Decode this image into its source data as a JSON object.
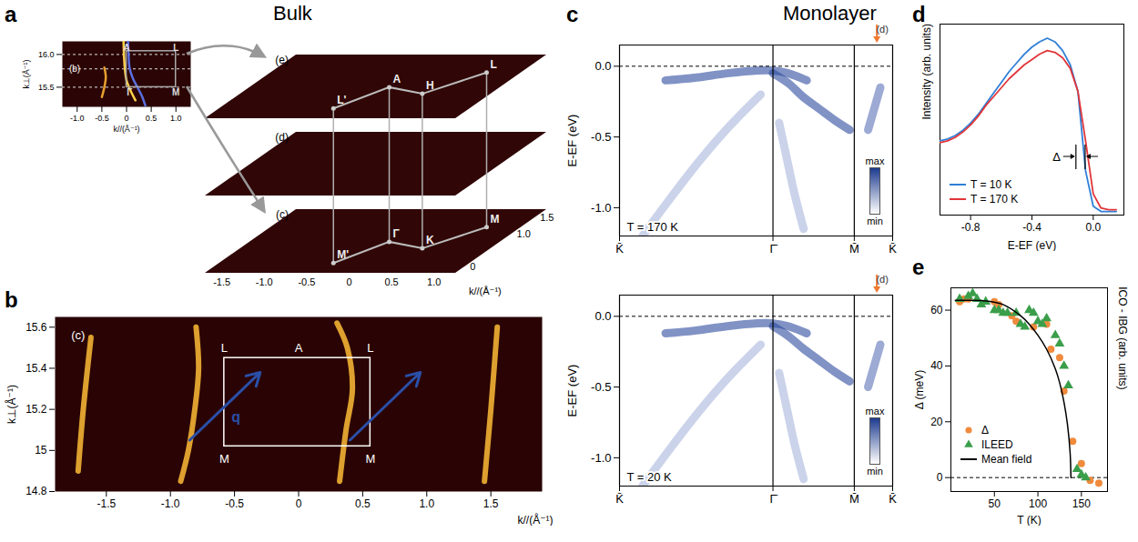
{
  "chart_data": [
    {
      "panel": "a",
      "group_title": "Bulk",
      "type": "line",
      "xlabel": "k//(Å⁻¹)",
      "ylabel": "k⊥(Å⁻¹)",
      "xlim": [
        -1.3,
        1.3
      ],
      "xticks": [
        {
          "value": -1,
          "label": "-1.0"
        },
        -0.5,
        0,
        0.5,
        {
          "value": 1,
          "label": "1.0"
        }
      ],
      "ylim": [
        15.2,
        16.2
      ],
      "yticks": [
        15.5,
        {
          "value": 16,
          "label": "16.0"
        }
      ],
      "series": [
        {
          "color": "#ffd24a",
          "x": [
            -0.06,
            -0.05,
            -0.03,
            0,
            0.08,
            0.18
          ],
          "values": [
            16.2,
            15.95,
            15.75,
            15.6,
            15.45,
            15.3
          ]
        },
        {
          "color": "#e8a030",
          "x": [
            -0.5,
            -0.45,
            -0.42,
            -0.45
          ],
          "values": [
            15.35,
            15.5,
            15.65,
            15.8
          ]
        },
        {
          "color": "#5b6fe0",
          "x": [
            0.03,
            0.04,
            0.06,
            0.12,
            0.22,
            0.32,
            0.38
          ],
          "values": [
            16.2,
            16.0,
            15.8,
            15.65,
            15.5,
            15.35,
            15.22
          ]
        }
      ],
      "cuts": [
        16.0,
        15.78,
        15.5
      ],
      "box": {
        "x": [
          0,
          1
        ],
        "y": [
          15.5,
          16.05
        ]
      },
      "labels": [
        {
          "text": "A",
          "x": 0,
          "y": 16.1
        },
        {
          "text": "L",
          "x": 1,
          "y": 16.1
        },
        {
          "text": "Γ",
          "x": 0.06,
          "y": 15.42
        },
        {
          "text": "M",
          "x": 1,
          "y": 15.42
        }
      ],
      "annotations": [
        {
          "text": "(b)",
          "x": -1.05,
          "y": 15.78
        }
      ]
    },
    {
      "type": "surface_stack",
      "xlabel": "k//(Å⁻¹)",
      "xlim": [
        -1.7,
        1.25
      ],
      "xticks": [
        -1.5,
        {
          "value": -1,
          "label": "-1.0"
        },
        -0.5,
        0,
        0.5,
        {
          "value": 1,
          "label": "1.0"
        }
      ],
      "ylim": [
        -0.2,
        1.75
      ],
      "yticks": [
        0,
        {
          "value": 1,
          "label": "1.0"
        },
        1.5
      ],
      "planes": [
        {
          "label": "(e)",
          "points": [
            {
              "text": "L'",
              "x": -0.35,
              "y": 0.1
            },
            {
              "text": "A",
              "x": -0.05,
              "y": 0.75
            },
            {
              "text": "H",
              "x": 0.45,
              "y": 0.55
            },
            {
              "text": "L",
              "x": 0.85,
              "y": 1.2
            }
          ]
        },
        {
          "label": "(d)",
          "points": []
        },
        {
          "label": "(c)",
          "points": [
            {
              "text": "M'",
              "x": -0.35,
              "y": 0.1
            },
            {
              "text": "Γ",
              "x": -0.05,
              "y": 0.75
            },
            {
              "text": "K",
              "x": 0.45,
              "y": 0.55
            },
            {
              "text": "M",
              "x": 0.85,
              "y": 1.2
            }
          ]
        }
      ]
    },
    {
      "panel": "b",
      "type": "line",
      "xlabel": "k//(Å⁻¹)",
      "ylabel": "k⊥(Å⁻¹)",
      "xlim": [
        -1.9,
        1.9
      ],
      "xticks": [
        -1.5,
        {
          "value": -1,
          "label": "-1.0"
        },
        -0.5,
        0,
        0.5,
        {
          "value": 1,
          "label": "1.0"
        },
        1.5
      ],
      "ylim": [
        14.8,
        15.65
      ],
      "yticks": [
        14.8,
        15,
        15.2,
        15.4,
        15.6
      ],
      "series": [
        {
          "color": "#f2b134",
          "x": [
            -0.92,
            -0.86,
            -0.81,
            -0.78,
            -0.8
          ],
          "values": [
            14.85,
            15.0,
            15.2,
            15.4,
            15.6
          ]
        },
        {
          "color": "#f2b134",
          "x": [
            0.32,
            0.37,
            0.42,
            0.38,
            0.3
          ],
          "values": [
            14.85,
            15.1,
            15.3,
            15.5,
            15.62
          ]
        },
        {
          "color": "#f2b134",
          "x": [
            -1.72,
            -1.68,
            -1.62
          ],
          "values": [
            14.9,
            15.2,
            15.55
          ]
        },
        {
          "color": "#f2b134",
          "x": [
            1.45,
            1.5,
            1.55
          ],
          "values": [
            14.85,
            15.2,
            15.6
          ]
        }
      ],
      "box": {
        "x": [
          -0.58,
          0.56
        ],
        "y": [
          15.02,
          15.45
        ]
      },
      "labels": [
        {
          "text": "L",
          "x": -0.58,
          "y": 15.5
        },
        {
          "text": "A",
          "x": 0,
          "y": 15.5
        },
        {
          "text": "L",
          "x": 0.56,
          "y": 15.5
        },
        {
          "text": "M",
          "x": -0.58,
          "y": 14.96
        },
        {
          "text": "M",
          "x": 0.56,
          "y": 14.96
        }
      ],
      "arrows": {
        "label": "q",
        "color": "#2a4fa8",
        "segments": [
          {
            "x1": -0.85,
            "y1": 15.05,
            "x2": -0.3,
            "y2": 15.38
          },
          {
            "x1": 0.4,
            "y1": 15.05,
            "x2": 0.95,
            "y2": 15.38
          }
        ]
      },
      "annotations": [
        {
          "text": "(c)",
          "x": -1.72,
          "y": 15.56
        }
      ]
    },
    {
      "panel": "c",
      "group_title": "Monolayer",
      "type": "line",
      "ylabel": "E-EF (eV)",
      "xlim": [
        0,
        1.78
      ],
      "xticks": [
        {
          "value": 0,
          "label": "K̄"
        },
        {
          "value": 1,
          "label": "Γ̄"
        },
        {
          "value": 1.53,
          "label": "M̄"
        },
        {
          "value": 1.78,
          "label": "K̄"
        }
      ],
      "ylim": [
        -1.2,
        0.15
      ],
      "yticks": [
        {
          "value": 0,
          "label": "0.0"
        },
        -0.5,
        {
          "value": -1,
          "label": "-1.0"
        }
      ],
      "grid": true,
      "reference_line": 0,
      "annotation": "T = 170 K",
      "arrow": {
        "x": 1.68,
        "label": "(d)"
      },
      "colorbar": {
        "labels": [
          "max",
          "min"
        ]
      },
      "series": [
        {
          "color": "#2d4b9e",
          "x": [
            0.3,
            0.5,
            0.7,
            0.9,
            1.0,
            1.1,
            1.22
          ],
          "values": [
            -0.1,
            -0.08,
            -0.05,
            -0.03,
            -0.03,
            -0.05,
            -0.1
          ]
        },
        {
          "color": "#2d4b9e",
          "x": [
            1.0,
            1.1,
            1.2,
            1.3,
            1.4,
            1.5
          ],
          "values": [
            -0.05,
            -0.12,
            -0.22,
            -0.3,
            -0.38,
            -0.45
          ]
        },
        {
          "color": "#a8b6dc",
          "x": [
            0.92,
            0.72,
            0.52,
            0.32,
            0.15
          ],
          "values": [
            -0.2,
            -0.42,
            -0.67,
            -0.95,
            -1.2
          ]
        },
        {
          "color": "#a8b6dc",
          "x": [
            1.04,
            1.09,
            1.14,
            1.2
          ],
          "values": [
            -0.4,
            -0.65,
            -0.9,
            -1.15
          ]
        },
        {
          "color": "#5a72b8",
          "x": [
            1.62,
            1.66,
            1.7
          ],
          "values": [
            -0.45,
            -0.3,
            -0.15
          ]
        }
      ]
    },
    {
      "type": "line",
      "ylabel": "E-EF (eV)",
      "xlim": [
        0,
        1.78
      ],
      "xticks": [
        {
          "value": 0,
          "label": "K̄"
        },
        {
          "value": 1,
          "label": "Γ̄"
        },
        {
          "value": 1.53,
          "label": "M̄"
        },
        {
          "value": 1.78,
          "label": "K̄"
        }
      ],
      "ylim": [
        -1.2,
        0.15
      ],
      "yticks": [
        {
          "value": 0,
          "label": "0.0"
        },
        -0.5,
        {
          "value": -1,
          "label": "-1.0"
        }
      ],
      "grid": true,
      "reference_line": 0,
      "annotation": "T = 20 K",
      "arrow": {
        "x": 1.68,
        "label": "(d)"
      },
      "colorbar": {
        "labels": [
          "max",
          "min"
        ]
      },
      "series": [
        {
          "color": "#2d4b9e",
          "x": [
            0.3,
            0.5,
            0.7,
            0.9,
            1.0,
            1.1,
            1.22
          ],
          "values": [
            -0.12,
            -0.1,
            -0.07,
            -0.05,
            -0.05,
            -0.07,
            -0.12
          ]
        },
        {
          "color": "#2d4b9e",
          "x": [
            1.0,
            1.1,
            1.2,
            1.3,
            1.4,
            1.5
          ],
          "values": [
            -0.07,
            -0.14,
            -0.23,
            -0.31,
            -0.39,
            -0.46
          ]
        },
        {
          "color": "#a8b6dc",
          "x": [
            0.92,
            0.72,
            0.52,
            0.32,
            0.15
          ],
          "values": [
            -0.2,
            -0.42,
            -0.67,
            -0.95,
            -1.2
          ]
        },
        {
          "color": "#a8b6dc",
          "x": [
            1.04,
            1.09,
            1.14,
            1.2
          ],
          "values": [
            -0.4,
            -0.65,
            -0.9,
            -1.15
          ]
        },
        {
          "color": "#5a72b8",
          "x": [
            1.62,
            1.66,
            1.7
          ],
          "values": [
            -0.5,
            -0.35,
            -0.2
          ]
        }
      ]
    },
    {
      "panel": "d",
      "type": "line",
      "xlabel": "E-EF (eV)",
      "ylabel": "Intensity (arb. units)",
      "xlim": [
        -1.0,
        0.2
      ],
      "xticks": [
        -0.8,
        -0.4,
        {
          "value": 0,
          "label": "0.0"
        }
      ],
      "ylim": [
        0,
        1.08
      ],
      "tick_labels": "x",
      "legend": "bottom-left",
      "x": [
        -1.0,
        -0.95,
        -0.9,
        -0.85,
        -0.8,
        -0.75,
        -0.7,
        -0.65,
        -0.6,
        -0.55,
        -0.5,
        -0.45,
        -0.4,
        -0.35,
        -0.3,
        -0.25,
        -0.2,
        -0.15,
        -0.1,
        -0.05,
        0,
        0.05,
        0.1,
        0.15
      ],
      "series": [
        {
          "name": "T = 10 K",
          "color": "#2f7fd6",
          "values": [
            0.42,
            0.43,
            0.45,
            0.48,
            0.52,
            0.57,
            0.63,
            0.69,
            0.75,
            0.81,
            0.86,
            0.91,
            0.95,
            0.98,
            1.0,
            0.98,
            0.93,
            0.85,
            0.7,
            0.25,
            0.05,
            0.02,
            0.02,
            0.02
          ]
        },
        {
          "name": "T = 170 K",
          "color": "#e0353a",
          "values": [
            0.41,
            0.42,
            0.44,
            0.47,
            0.51,
            0.56,
            0.62,
            0.67,
            0.72,
            0.77,
            0.81,
            0.85,
            0.88,
            0.91,
            0.93,
            0.92,
            0.89,
            0.83,
            0.7,
            0.42,
            0.12,
            0.04,
            0.03,
            0.03
          ]
        }
      ],
      "delta_marks": [
        -0.11,
        -0.05
      ],
      "delta_label": "Δ"
    },
    {
      "panel": "e",
      "type": "scatter",
      "xlabel": "T (K)",
      "ylabel": "Δ (meV)",
      "y2label": "ICO - IBG (arb. units)",
      "xlim": [
        0,
        180
      ],
      "xticks": [
        50,
        100,
        150
      ],
      "ylim": [
        -5,
        68
      ],
      "yticks": [
        0,
        20,
        40,
        60
      ],
      "y2lim": [
        -5,
        68
      ],
      "y2ticks": [],
      "legend": "bottom-left",
      "reference_line": 0,
      "series": [
        {
          "name": "Δ",
          "color": "#f08a3c",
          "marker": "circle",
          "x": [
            10,
            15,
            20,
            50,
            55,
            70,
            75,
            95,
            110,
            115,
            125,
            130,
            140,
            150,
            160,
            170
          ],
          "values": [
            63,
            64,
            64,
            63,
            62,
            58,
            56,
            54,
            55,
            46,
            43,
            31,
            13,
            5,
            -1,
            -2
          ]
        },
        {
          "name": "ILEED",
          "color": "#3a9e4a",
          "marker": "triangle",
          "axis": "y2",
          "x": [
            10,
            20,
            25,
            30,
            35,
            40,
            50,
            55,
            60,
            65,
            75,
            80,
            85,
            90,
            95,
            100,
            105,
            110,
            120,
            125,
            130,
            135,
            145,
            150,
            155
          ],
          "values": [
            64,
            65,
            66,
            64,
            62,
            63,
            60,
            60,
            59,
            59,
            59,
            55,
            54,
            60,
            59,
            56,
            55,
            57,
            51,
            48,
            40,
            33,
            3,
            1,
            0
          ]
        },
        {
          "name": "Mean field",
          "color": "#000000",
          "type": "line",
          "x": [
            5,
            20,
            40,
            60,
            80,
            90,
            100,
            110,
            120,
            125,
            130,
            134,
            137,
            138
          ],
          "values": [
            63.5,
            63.5,
            63.3,
            62,
            58,
            55,
            51,
            46,
            39,
            34,
            27,
            19,
            9,
            0
          ]
        }
      ]
    }
  ]
}
